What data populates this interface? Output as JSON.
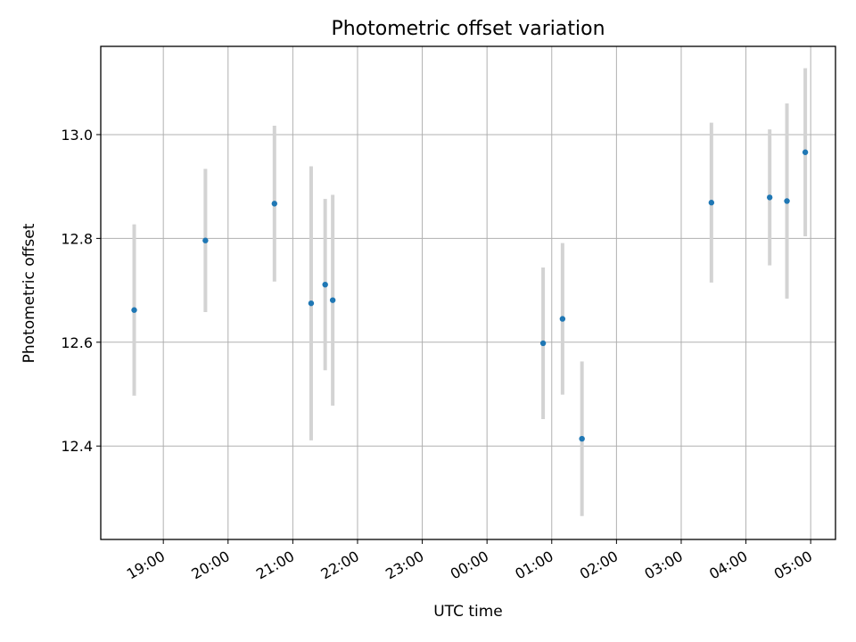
{
  "chart_data": {
    "type": "scatter",
    "title": "Photometric offset variation",
    "xlabel": "UTC time",
    "ylabel": "Photometric offset",
    "x_ticks": [
      "19:00",
      "20:00",
      "21:00",
      "22:00",
      "23:00",
      "00:00",
      "01:00",
      "02:00",
      "03:00",
      "04:00",
      "05:00"
    ],
    "y_ticks": [
      "12.4",
      "12.6",
      "12.8",
      "13.0"
    ],
    "xlim": [
      "18:02",
      "05:23"
    ],
    "ylim": [
      12.22,
      13.17
    ],
    "grid": true,
    "colors": {
      "point": "#1f77b4",
      "errorbar": "#d3d3d3",
      "grid": "#b0b0b0"
    },
    "points": [
      {
        "x": "18:33",
        "y": 12.662,
        "yerr": 0.165
      },
      {
        "x": "19:39",
        "y": 12.796,
        "yerr": 0.138
      },
      {
        "x": "20:43",
        "y": 12.867,
        "yerr": 0.15
      },
      {
        "x": "21:17",
        "y": 12.675,
        "yerr": 0.264
      },
      {
        "x": "21:30",
        "y": 12.711,
        "yerr": 0.165
      },
      {
        "x": "21:37",
        "y": 12.681,
        "yerr": 0.203
      },
      {
        "x": "00:52",
        "y": 12.598,
        "yerr": 0.146
      },
      {
        "x": "01:10",
        "y": 12.645,
        "yerr": 0.146
      },
      {
        "x": "01:28",
        "y": 12.414,
        "yerr": 0.149
      },
      {
        "x": "03:28",
        "y": 12.869,
        "yerr": 0.154
      },
      {
        "x": "04:22",
        "y": 12.879,
        "yerr": 0.131
      },
      {
        "x": "04:38",
        "y": 12.872,
        "yerr": 0.188
      },
      {
        "x": "04:55",
        "y": 12.966,
        "yerr": 0.162
      }
    ]
  }
}
